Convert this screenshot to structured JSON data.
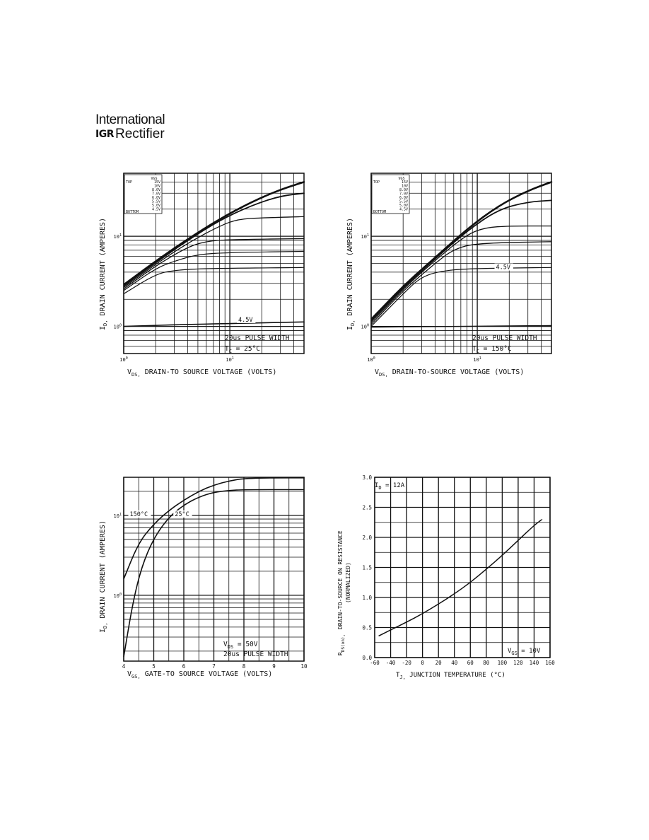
{
  "header": {
    "logo_line1": "International",
    "logo_mark": "IGR",
    "logo_line2": "Rectifier"
  },
  "chart_data": [
    {
      "type": "line",
      "xscale": "log",
      "yscale": "log",
      "xlim": [
        1,
        50
      ],
      "ylim": [
        0.5,
        50
      ],
      "xticks": [
        {
          "v": 1,
          "base": "10",
          "exp": "0"
        },
        {
          "v": 10,
          "base": "10",
          "exp": "1"
        }
      ],
      "yticks": [
        {
          "v": 1,
          "base": "10",
          "exp": "0"
        },
        {
          "v": 10,
          "base": "10",
          "exp": "1"
        }
      ],
      "xlabel_main": "V",
      "xlabel_sub": "DS,",
      "xlabel_rest": " DRAIN-TO SOURCE VOLTAGE (VOLTS)",
      "ylabel_main": "I",
      "ylabel_sub": "D,",
      "ylabel_rest": " DRAIN CURRENT (AMPERES)",
      "legend_header": "VGS",
      "legend_top": "TOP",
      "legend_bottom": "BOTTOM",
      "legend_values": [
        "15V",
        "10V",
        "8.0V",
        "7.0V",
        "6.0V",
        "5.5V",
        "5.0V",
        "4.5V"
      ],
      "annotations": [
        {
          "text": "4.5V",
          "x": 12,
          "y": 1.15
        }
      ],
      "note_line1": "20us PULSE WIDTH",
      "note_line2_main": "T",
      "note_line2_sub": "C",
      "note_line2_rest": " = 25°C",
      "series": [
        {
          "values": [
            [
              1,
              2.9
            ],
            [
              2,
              5.3
            ],
            [
              4,
              9.3
            ],
            [
              8,
              15.5
            ],
            [
              16,
              24
            ],
            [
              30,
              33
            ],
            [
              50,
              40
            ]
          ]
        },
        {
          "values": [
            [
              1,
              2.8
            ],
            [
              2,
              5.1
            ],
            [
              4,
              9.0
            ],
            [
              8,
              15
            ],
            [
              16,
              22
            ],
            [
              30,
              28
            ],
            [
              50,
              30
            ]
          ]
        },
        {
          "values": [
            [
              1,
              2.7
            ],
            [
              2,
              4.9
            ],
            [
              4,
              8.4
            ],
            [
              8,
              13
            ],
            [
              12,
              15.5
            ],
            [
              20,
              16
            ],
            [
              50,
              16.5
            ]
          ]
        },
        {
          "values": [
            [
              1,
              2.6
            ],
            [
              2,
              4.7
            ],
            [
              4,
              7.6
            ],
            [
              6,
              8.8
            ],
            [
              10,
              9.2
            ],
            [
              50,
              9.4
            ]
          ]
        },
        {
          "values": [
            [
              1,
              2.5
            ],
            [
              2,
              4.4
            ],
            [
              3,
              5.3
            ],
            [
              5,
              6.3
            ],
            [
              10,
              6.6
            ],
            [
              50,
              6.8
            ]
          ]
        },
        {
          "values": [
            [
              1,
              2.3
            ],
            [
              2,
              3.8
            ],
            [
              3,
              4.2
            ],
            [
              6,
              4.4
            ],
            [
              50,
              4.5
            ]
          ]
        },
        {
          "values": [
            [
              1,
              1.0
            ],
            [
              5,
              1.06
            ],
            [
              50,
              1.12
            ]
          ]
        }
      ]
    },
    {
      "type": "line",
      "xscale": "log",
      "yscale": "log",
      "xlim": [
        1,
        50
      ],
      "ylim": [
        0.5,
        50
      ],
      "xticks": [
        {
          "v": 1,
          "base": "10",
          "exp": "0"
        },
        {
          "v": 10,
          "base": "10",
          "exp": "1"
        }
      ],
      "yticks": [
        {
          "v": 1,
          "base": "10",
          "exp": "0"
        },
        {
          "v": 10,
          "base": "10",
          "exp": "1"
        }
      ],
      "xlabel_main": "V",
      "xlabel_sub": "DS,",
      "xlabel_rest": " DRAIN-TO-SOURCE VOLTAGE (VOLTS)",
      "ylabel_main": "I",
      "ylabel_sub": "D,",
      "ylabel_rest": " DRAIN CURRENT (AMPERES)",
      "legend_header": "VGS",
      "legend_top": "TOP",
      "legend_bottom": "BOTTOM",
      "legend_values": [
        "15V",
        "10V",
        "8.0V",
        "7.0V",
        "6.0V",
        "5.5V",
        "5.0V",
        "4.5V"
      ],
      "annotations": [
        {
          "text": "4.5V",
          "x": 15,
          "y": 4.4
        }
      ],
      "note_line1": "20us PULSE WIDTH",
      "note_line2_main": "T",
      "note_line2_sub": "C",
      "note_line2_rest": " = 150°C",
      "series": [
        {
          "values": [
            [
              1,
              1.2
            ],
            [
              2,
              2.8
            ],
            [
              4,
              5.8
            ],
            [
              8,
              12
            ],
            [
              16,
              22
            ],
            [
              30,
              32
            ],
            [
              50,
              40
            ]
          ]
        },
        {
          "values": [
            [
              1,
              1.15
            ],
            [
              2,
              2.7
            ],
            [
              4,
              5.6
            ],
            [
              8,
              11.5
            ],
            [
              16,
              20
            ],
            [
              30,
              24
            ],
            [
              50,
              25
            ]
          ]
        },
        {
          "values": [
            [
              1,
              1.1
            ],
            [
              2,
              2.6
            ],
            [
              4,
              5.4
            ],
            [
              8,
              10.5
            ],
            [
              12,
              12.5
            ],
            [
              20,
              13
            ],
            [
              50,
              13
            ]
          ]
        },
        {
          "values": [
            [
              1,
              1.05
            ],
            [
              2,
              2.5
            ],
            [
              4,
              5.0
            ],
            [
              6,
              7.2
            ],
            [
              10,
              8.4
            ],
            [
              50,
              8.7
            ]
          ]
        },
        {
          "values": [
            [
              1,
              1.0
            ],
            [
              2,
              2.3
            ],
            [
              3,
              3.6
            ],
            [
              5,
              4.2
            ],
            [
              10,
              4.4
            ],
            [
              50,
              4.5
            ]
          ]
        },
        {
          "values": [
            [
              1,
              0.98
            ],
            [
              5,
              1.0
            ],
            [
              50,
              1.02
            ]
          ]
        }
      ]
    },
    {
      "type": "line",
      "xscale": "linear",
      "yscale": "log",
      "xlim": [
        4,
        10
      ],
      "ylim": [
        0.15,
        30
      ],
      "xticks": [
        {
          "v": 4,
          "t": "4"
        },
        {
          "v": 5,
          "t": "5"
        },
        {
          "v": 6,
          "t": "6"
        },
        {
          "v": 7,
          "t": "7"
        },
        {
          "v": 8,
          "t": "8"
        },
        {
          "v": 9,
          "t": "9"
        },
        {
          "v": 10,
          "t": "10"
        }
      ],
      "yticks": [
        {
          "v": 1,
          "base": "10",
          "exp": "0"
        },
        {
          "v": 10,
          "base": "10",
          "exp": "1"
        }
      ],
      "xlabel_main": "V",
      "xlabel_sub": "GS,",
      "xlabel_rest": " GATE-TO SOURCE VOLTAGE (VOLTS)",
      "ylabel_main": "I",
      "ylabel_sub": "D,",
      "ylabel_rest": " DRAIN CURRENT (AMPERES)",
      "annotations": [
        {
          "text": "150°C",
          "x": 4.2,
          "y": 10
        },
        {
          "text": "25°C",
          "x": 5.7,
          "y": 10
        }
      ],
      "note_line1_main": "V",
      "note_line1_sub": "DS",
      "note_line1_rest": " = 50V",
      "note_line2": "20us PULSE WIDTH",
      "series": [
        {
          "name": "150°C",
          "values": [
            [
              4,
              1.6
            ],
            [
              4.5,
              4.6
            ],
            [
              5,
              7.8
            ],
            [
              5.5,
              11.5
            ],
            [
              6,
              15.5
            ],
            [
              6.5,
              20
            ],
            [
              7,
              24
            ],
            [
              7.5,
              27
            ],
            [
              8,
              29
            ],
            [
              9,
              29.5
            ],
            [
              10,
              29.5
            ]
          ]
        },
        {
          "name": "25°C",
          "values": [
            [
              4,
              0.17
            ],
            [
              4.3,
              0.8
            ],
            [
              4.6,
              2.3
            ],
            [
              5,
              5.2
            ],
            [
              5.5,
              9.5
            ],
            [
              6,
              13.5
            ],
            [
              6.5,
              17
            ],
            [
              7,
              19.5
            ],
            [
              7.5,
              20.5
            ],
            [
              8,
              21
            ],
            [
              10,
              21
            ]
          ]
        }
      ]
    },
    {
      "type": "line",
      "xscale": "linear",
      "yscale": "linear",
      "xlim": [
        -60,
        160
      ],
      "ylim": [
        0,
        3.0
      ],
      "xticks": [
        {
          "v": -60,
          "t": "-60"
        },
        {
          "v": -40,
          "t": "-40"
        },
        {
          "v": -20,
          "t": "-20"
        },
        {
          "v": 0,
          "t": "0"
        },
        {
          "v": 20,
          "t": "20"
        },
        {
          "v": 40,
          "t": "40"
        },
        {
          "v": 60,
          "t": "60"
        },
        {
          "v": 80,
          "t": "80"
        },
        {
          "v": 100,
          "t": "100"
        },
        {
          "v": 120,
          "t": "120"
        },
        {
          "v": 140,
          "t": "140"
        },
        {
          "v": 160,
          "t": "160"
        }
      ],
      "yticks": [
        {
          "v": 0,
          "t": "0.0"
        },
        {
          "v": 0.5,
          "t": "0.5"
        },
        {
          "v": 1,
          "t": "1.0"
        },
        {
          "v": 1.5,
          "t": "1.5"
        },
        {
          "v": 2,
          "t": "2.0"
        },
        {
          "v": 2.5,
          "t": "2.5"
        },
        {
          "v": 3,
          "t": "3.0"
        }
      ],
      "xlabel_main": "T",
      "xlabel_sub": "J,",
      "xlabel_rest": " JUNCTION TEMPERATURE (°C)",
      "ylabel_line1": "DRAIN-TO-SOURCE ON RESISTANCE",
      "ylabel_line2": "(NORMALIZED)",
      "ylabel_main": "R",
      "ylabel_sub": "DS(on),",
      "note_line1_main": "I",
      "note_line1_sub": "D",
      "note_line1_rest": " = 12A",
      "note_line2_main": "V",
      "note_line2_sub": "GS",
      "note_line2_rest": " = 10V",
      "series": [
        {
          "values": [
            [
              -55,
              0.36
            ],
            [
              -40,
              0.46
            ],
            [
              -20,
              0.59
            ],
            [
              0,
              0.73
            ],
            [
              20,
              0.89
            ],
            [
              40,
              1.06
            ],
            [
              60,
              1.25
            ],
            [
              80,
              1.47
            ],
            [
              100,
              1.7
            ],
            [
              120,
              1.95
            ],
            [
              140,
              2.2
            ],
            [
              150,
              2.3
            ]
          ]
        }
      ]
    }
  ]
}
